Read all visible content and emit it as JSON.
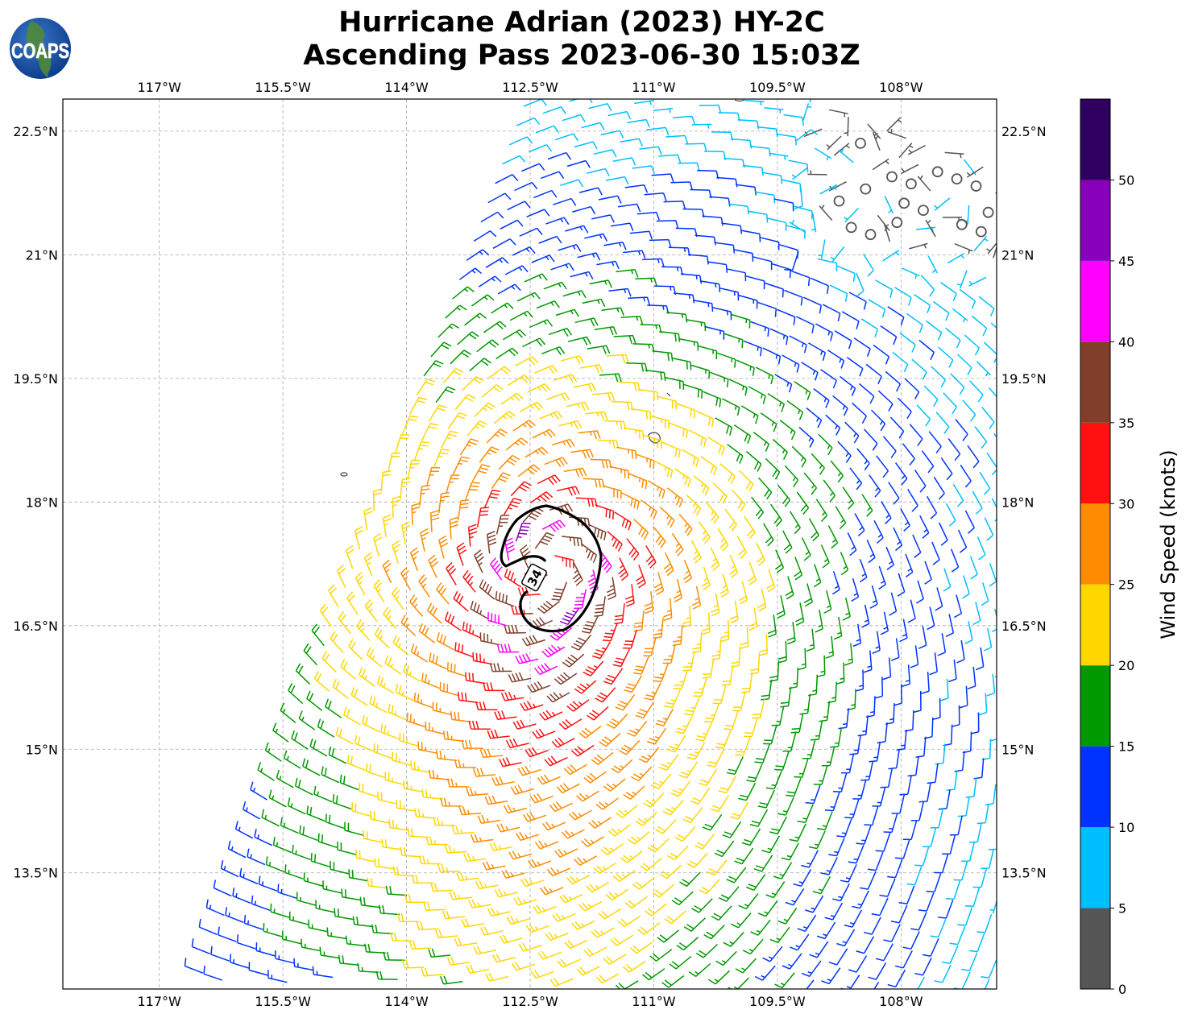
{
  "title": {
    "line1": "Hurricane Adrian (2023) HY-2C",
    "line2": "Ascending Pass 2023-06-30 15:03Z"
  },
  "logo": {
    "text": "COAPS"
  },
  "map": {
    "lon_range": [
      -118.17,
      -106.84
    ],
    "lat_range": [
      12.09,
      22.89
    ],
    "gridlines": true,
    "lon_ticks": [
      {
        "label": "117°W",
        "value": -117
      },
      {
        "label": "115.5°W",
        "value": -115.5
      },
      {
        "label": "114°W",
        "value": -114
      },
      {
        "label": "112.5°W",
        "value": -112.5
      },
      {
        "label": "111°W",
        "value": -111
      },
      {
        "label": "109.5°W",
        "value": -109.5
      },
      {
        "label": "108°W",
        "value": -108
      }
    ],
    "lat_ticks": [
      {
        "label": "22.5°N",
        "value": 22.5
      },
      {
        "label": "21°N",
        "value": 21
      },
      {
        "label": "19.5°N",
        "value": 19.5
      },
      {
        "label": "18°N",
        "value": 18
      },
      {
        "label": "16.5°N",
        "value": 16.5
      },
      {
        "label": "15°N",
        "value": 15
      },
      {
        "label": "13.5°N",
        "value": 13.5
      }
    ],
    "contour_label": "34"
  },
  "colorbar": {
    "label": "Wind Speed (knots)",
    "range": [
      0,
      55
    ],
    "bounds": [
      0,
      5,
      10,
      15,
      20,
      25,
      30,
      35,
      40,
      45,
      50,
      55
    ],
    "colors": [
      "#555555",
      "#00bfff",
      "#0033ff",
      "#009900",
      "#ffd700",
      "#ff8c00",
      "#ff1111",
      "#7f3f2a",
      "#ff00ff",
      "#8800bb",
      "#2f0060"
    ],
    "ticks": [
      "0",
      "5",
      "10",
      "15",
      "20",
      "25",
      "30",
      "35",
      "40",
      "45",
      "50"
    ]
  }
}
